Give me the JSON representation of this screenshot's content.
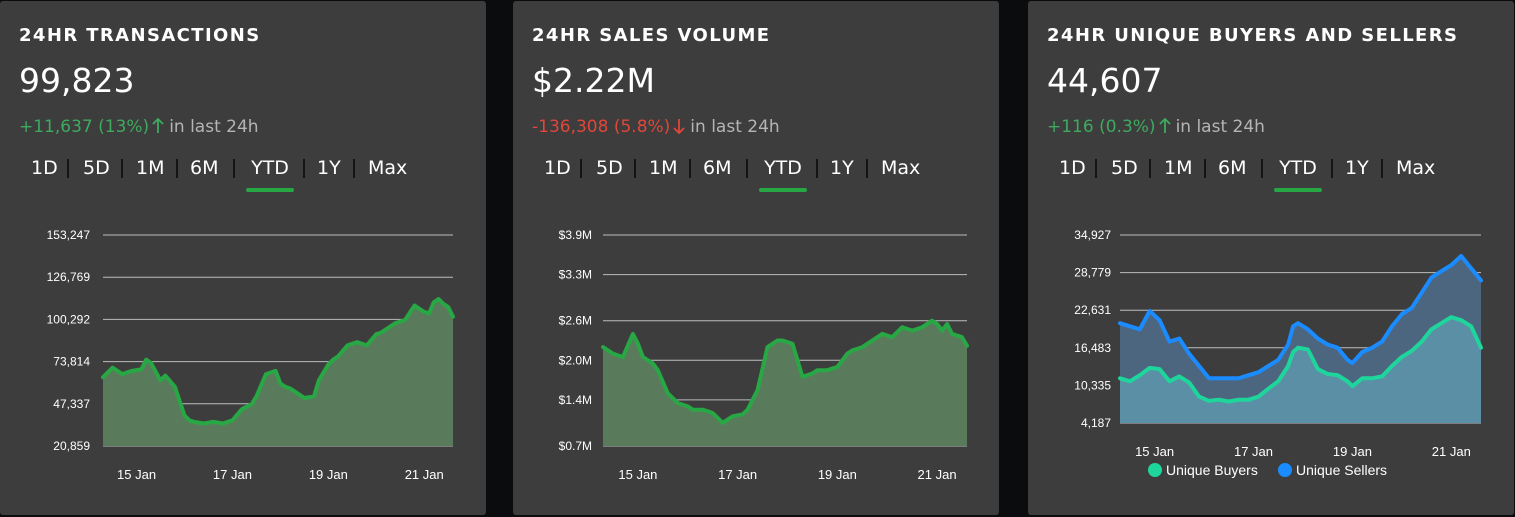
{
  "cards": [
    {
      "title": "24HR TRANSACTIONS",
      "value": "99,823",
      "change": "+11,637 (13%)",
      "direction": "up",
      "change_suffix": "in last 24h",
      "tabs": [
        "1D",
        "5D",
        "1M",
        "6M",
        "YTD",
        "1Y",
        "Max"
      ],
      "active_tab": "YTD"
    },
    {
      "title": "24HR SALES VOLUME",
      "value": "$2.22M",
      "change": "-136,308 (5.8%)",
      "direction": "down",
      "change_suffix": "in last 24h",
      "tabs": [
        "1D",
        "5D",
        "1M",
        "6M",
        "YTD",
        "1Y",
        "Max"
      ],
      "active_tab": "YTD"
    },
    {
      "title": "24HR UNIQUE BUYERS AND SELLERS",
      "value": "44,607",
      "change": "+116 (0.3%)",
      "direction": "up",
      "change_suffix": "in last 24h",
      "tabs": [
        "1D",
        "5D",
        "1M",
        "6M",
        "YTD",
        "1Y",
        "Max"
      ],
      "active_tab": "YTD"
    }
  ],
  "colors": {
    "card_bg": "#3d3d3d",
    "page_bg": "#0b0c0e",
    "up": "#3fa95f",
    "down": "#e0463a",
    "active_tab_underline": "#28a745",
    "transactions_line": "#28a745",
    "buyers_line": "#1ed69b",
    "sellers_line": "#1a8cff"
  },
  "icons": {
    "up": "arrow-up-icon",
    "down": "arrow-down-icon"
  },
  "chart_data": [
    {
      "type": "area",
      "y_ticks": [
        20859,
        47337,
        73814,
        100292,
        126769,
        153247
      ],
      "y_tick_labels": [
        "20,859",
        "47,337",
        "73,814",
        "100,292",
        "126,769",
        "153,247"
      ],
      "ylim": [
        20859,
        153247
      ],
      "x_ticks": [
        1,
        3,
        5,
        7
      ],
      "x_tick_labels": [
        "15 Jan",
        "17 Jan",
        "19 Jan",
        "21 Jan"
      ],
      "xlim": [
        0.3,
        7.6
      ],
      "grid": true,
      "series": [
        {
          "x": [
            0.3,
            0.5,
            0.7,
            0.9,
            1.1,
            1.2,
            1.3,
            1.5,
            1.6,
            1.8,
            1.9,
            2.0,
            2.1,
            2.2,
            2.4,
            2.6,
            2.8,
            3.0,
            3.2,
            3.4,
            3.5,
            3.7,
            3.9,
            4.0,
            4.1,
            4.2,
            4.3,
            4.5,
            4.7,
            4.8,
            5.0,
            5.1,
            5.2,
            5.4,
            5.6,
            5.8,
            6.0,
            6.1,
            6.2,
            6.4,
            6.6,
            6.8,
            7.0,
            7.1,
            7.2,
            7.3,
            7.4,
            7.5,
            7.6
          ],
          "values": [
            64000,
            70000,
            66000,
            68000,
            69000,
            75000,
            73000,
            62000,
            65000,
            58000,
            49000,
            40000,
            37000,
            36000,
            35000,
            36000,
            35000,
            37000,
            44000,
            47000,
            52000,
            66000,
            68000,
            60000,
            58000,
            57000,
            55000,
            51000,
            52000,
            62000,
            72000,
            75000,
            77000,
            84000,
            86000,
            84000,
            91000,
            92000,
            94000,
            98000,
            100000,
            109000,
            105000,
            104000,
            111000,
            113000,
            110000,
            108000,
            102000
          ]
        }
      ]
    },
    {
      "type": "area",
      "y_ticks": [
        0.7,
        1.4,
        2.0,
        2.6,
        3.3,
        3.9
      ],
      "y_tick_labels": [
        "$0.7M",
        "$1.4M",
        "$2.0M",
        "$2.6M",
        "$3.3M",
        "$3.9M"
      ],
      "ylim": [
        0.7,
        3.9
      ],
      "x_ticks": [
        1,
        3,
        5,
        7
      ],
      "x_tick_labels": [
        "15 Jan",
        "17 Jan",
        "19 Jan",
        "21 Jan"
      ],
      "xlim": [
        0.3,
        7.6
      ],
      "grid": true,
      "series": [
        {
          "x": [
            0.3,
            0.5,
            0.7,
            0.9,
            1.0,
            1.1,
            1.3,
            1.4,
            1.6,
            1.8,
            2.0,
            2.1,
            2.3,
            2.5,
            2.7,
            2.9,
            3.1,
            3.2,
            3.4,
            3.6,
            3.7,
            3.8,
            3.9,
            4.1,
            4.3,
            4.5,
            4.6,
            4.8,
            5.0,
            5.2,
            5.3,
            5.5,
            5.7,
            5.9,
            6.1,
            6.3,
            6.5,
            6.7,
            6.9,
            7.0,
            7.1,
            7.2,
            7.3,
            7.5,
            7.6
          ],
          "values": [
            2.2,
            2.1,
            2.05,
            2.4,
            2.25,
            2.05,
            1.95,
            1.85,
            1.5,
            1.35,
            1.3,
            1.25,
            1.25,
            1.2,
            1.05,
            1.15,
            1.18,
            1.25,
            1.55,
            2.2,
            2.25,
            2.3,
            2.3,
            2.25,
            1.75,
            1.8,
            1.85,
            1.85,
            1.9,
            2.1,
            2.15,
            2.2,
            2.3,
            2.4,
            2.35,
            2.5,
            2.45,
            2.5,
            2.6,
            2.55,
            2.45,
            2.55,
            2.4,
            2.35,
            2.22
          ]
        }
      ]
    },
    {
      "type": "area",
      "y_ticks": [
        4187,
        10335,
        16483,
        22631,
        28779,
        34927
      ],
      "y_tick_labels": [
        "4,187",
        "10,335",
        "16,483",
        "22,631",
        "28,779",
        "34,927"
      ],
      "ylim": [
        4187,
        34927
      ],
      "x_ticks": [
        1,
        3,
        5,
        7
      ],
      "x_tick_labels": [
        "15 Jan",
        "17 Jan",
        "19 Jan",
        "21 Jan"
      ],
      "xlim": [
        0.3,
        7.6
      ],
      "grid": true,
      "legend": "bottom",
      "series": [
        {
          "name": "Unique Buyers",
          "x": [
            0.3,
            0.5,
            0.7,
            0.9,
            1.1,
            1.3,
            1.5,
            1.7,
            1.9,
            2.1,
            2.3,
            2.5,
            2.7,
            2.9,
            3.1,
            3.3,
            3.5,
            3.7,
            3.8,
            3.9,
            4.1,
            4.3,
            4.5,
            4.7,
            4.9,
            5.0,
            5.2,
            5.4,
            5.6,
            5.8,
            6.0,
            6.2,
            6.4,
            6.6,
            6.8,
            7.0,
            7.2,
            7.4,
            7.6
          ],
          "values": [
            11500,
            11000,
            12000,
            13200,
            13000,
            11000,
            11800,
            10800,
            8500,
            7800,
            8000,
            7700,
            8000,
            8000,
            8500,
            9800,
            11000,
            13500,
            15800,
            16500,
            16200,
            13000,
            12200,
            12000,
            11000,
            10200,
            11500,
            11500,
            11800,
            13500,
            15000,
            16000,
            17500,
            19500,
            20500,
            21500,
            21000,
            20000,
            16500
          ]
        },
        {
          "name": "Unique Sellers",
          "x": [
            0.3,
            0.5,
            0.7,
            0.9,
            1.1,
            1.3,
            1.5,
            1.7,
            1.9,
            2.1,
            2.3,
            2.5,
            2.7,
            2.9,
            3.1,
            3.3,
            3.5,
            3.7,
            3.8,
            3.9,
            4.1,
            4.3,
            4.5,
            4.7,
            4.9,
            5.0,
            5.2,
            5.4,
            5.6,
            5.8,
            6.0,
            6.2,
            6.4,
            6.6,
            6.8,
            7.0,
            7.2,
            7.4,
            7.6
          ],
          "values": [
            20500,
            20000,
            19500,
            22500,
            21000,
            17500,
            18000,
            15500,
            13500,
            11500,
            11500,
            11500,
            11500,
            12000,
            12500,
            13500,
            14500,
            17000,
            20000,
            20500,
            19500,
            18000,
            17000,
            16500,
            14500,
            14000,
            15800,
            16500,
            17500,
            20000,
            22000,
            23000,
            25500,
            28000,
            29000,
            30000,
            31500,
            29500,
            27500
          ]
        }
      ]
    }
  ]
}
